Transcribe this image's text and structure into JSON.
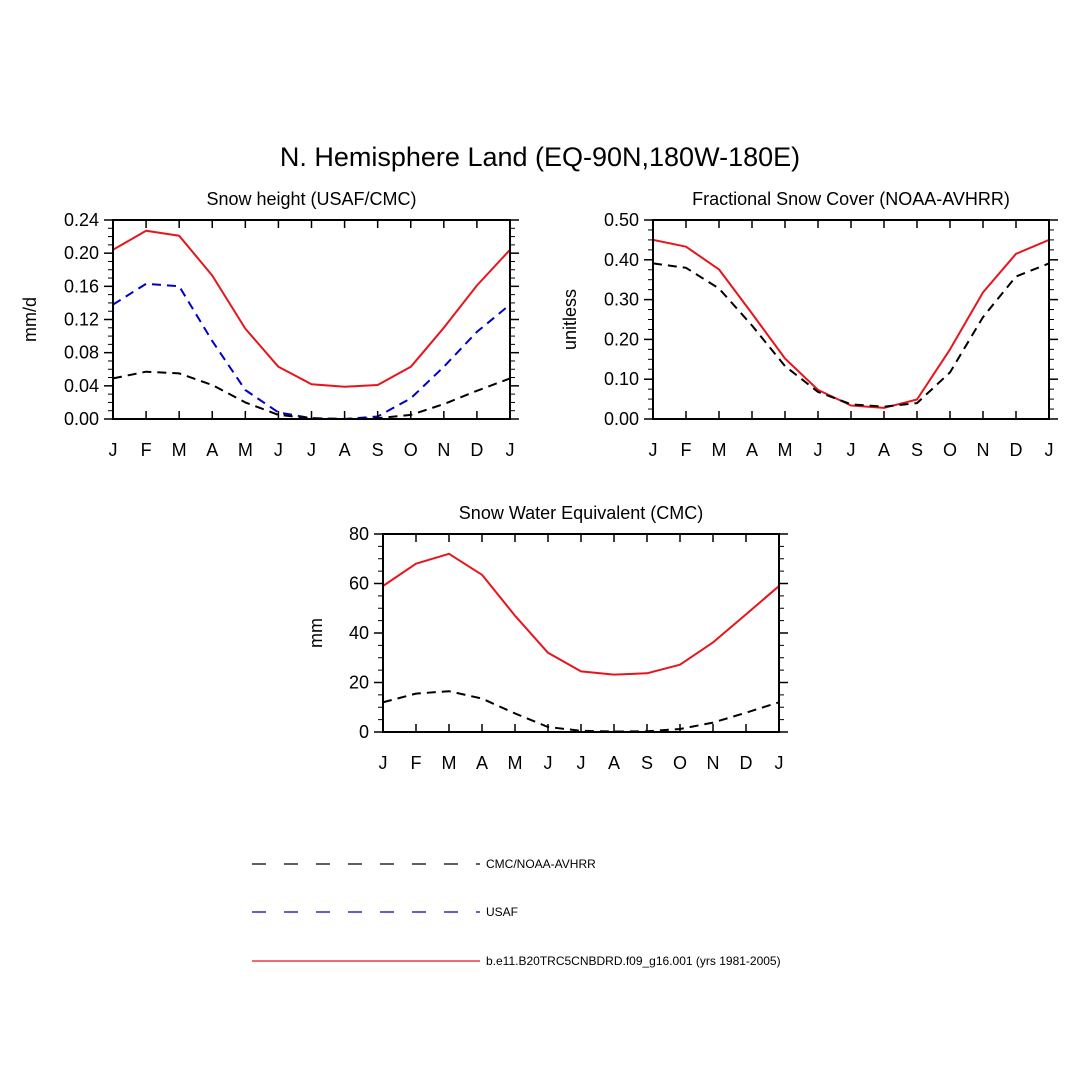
{
  "figure": {
    "title": "N. Hemisphere Land (EQ-90N,180W-180E)"
  },
  "colors": {
    "obs": "#000000",
    "usaf": "#0000cc",
    "model": "#e8141c"
  },
  "legend": {
    "entries": [
      {
        "key": "obs",
        "label": "CMC/NOAA-AVHRR",
        "style": "dashed"
      },
      {
        "key": "usaf",
        "label": "USAF",
        "style": "dashed"
      },
      {
        "key": "model",
        "label": "b.e11.B20TRC5CNBDRD.f09_g16.001 (yrs 1981-2005)",
        "style": "solid"
      }
    ]
  },
  "chart_data": [
    {
      "type": "line",
      "title": "Snow height (USAF/CMC)",
      "xlabel": "",
      "ylabel": "mm/d",
      "categories": [
        "J",
        "F",
        "M",
        "A",
        "M",
        "J",
        "J",
        "A",
        "S",
        "O",
        "N",
        "D",
        "J"
      ],
      "ylim": [
        0,
        0.24
      ],
      "yticks": [
        "0.00",
        "0.04",
        "0.08",
        "0.12",
        "0.16",
        "0.20",
        "0.24"
      ],
      "series": [
        {
          "name": "b.e11.B20TRC5CNBDRD.f09_g16.001 (yrs 1981-2005)",
          "key": "model",
          "values": [
            0.204,
            0.227,
            0.221,
            0.173,
            0.109,
            0.063,
            0.042,
            0.039,
            0.041,
            0.063,
            0.11,
            0.161,
            0.204
          ]
        },
        {
          "name": "USAF",
          "key": "usaf",
          "values": [
            0.138,
            0.163,
            0.16,
            0.094,
            0.035,
            0.008,
            0.001,
            0.0,
            0.003,
            0.025,
            0.063,
            0.105,
            0.138
          ]
        },
        {
          "name": "CMC/NOAA-AVHRR",
          "key": "obs",
          "values": [
            0.049,
            0.057,
            0.055,
            0.041,
            0.02,
            0.005,
            0.001,
            0.0,
            0.001,
            0.005,
            0.018,
            0.034,
            0.049
          ]
        }
      ]
    },
    {
      "type": "line",
      "title": "Fractional Snow Cover (NOAA-AVHRR)",
      "xlabel": "",
      "ylabel": "unitless",
      "categories": [
        "J",
        "F",
        "M",
        "A",
        "M",
        "J",
        "J",
        "A",
        "S",
        "O",
        "N",
        "D",
        "J"
      ],
      "ylim": [
        0,
        0.5
      ],
      "yticks": [
        "0.00",
        "0.10",
        "0.20",
        "0.30",
        "0.40",
        "0.50"
      ],
      "series": [
        {
          "name": "b.e11.B20TRC5CNBDRD.f09_g16.001 (yrs 1981-2005)",
          "key": "model",
          "values": [
            0.45,
            0.433,
            0.376,
            0.265,
            0.152,
            0.073,
            0.034,
            0.028,
            0.049,
            0.175,
            0.318,
            0.415,
            0.45
          ]
        },
        {
          "name": "CMC/NOAA-AVHRR",
          "key": "obs",
          "values": [
            0.391,
            0.38,
            0.328,
            0.235,
            0.133,
            0.068,
            0.037,
            0.031,
            0.04,
            0.117,
            0.256,
            0.358,
            0.391
          ]
        }
      ]
    },
    {
      "type": "line",
      "title": "Snow Water Equivalent (CMC)",
      "xlabel": "",
      "ylabel": "mm",
      "categories": [
        "J",
        "F",
        "M",
        "A",
        "M",
        "J",
        "J",
        "A",
        "S",
        "O",
        "N",
        "D",
        "J"
      ],
      "ylim": [
        0,
        80
      ],
      "yticks": [
        "0",
        "20",
        "40",
        "60",
        "80"
      ],
      "series": [
        {
          "name": "b.e11.B20TRC5CNBDRD.f09_g16.001 (yrs 1981-2005)",
          "key": "model",
          "values": [
            59.0,
            68.0,
            72.0,
            63.5,
            47.0,
            32.0,
            24.5,
            23.2,
            23.7,
            27.2,
            36.2,
            47.5,
            59.0
          ]
        },
        {
          "name": "CMC/NOAA-AVHRR",
          "key": "obs",
          "values": [
            12.0,
            15.5,
            16.5,
            13.5,
            7.5,
            2.0,
            0.5,
            0.2,
            0.3,
            1.2,
            3.8,
            7.8,
            12.0
          ]
        }
      ]
    }
  ]
}
